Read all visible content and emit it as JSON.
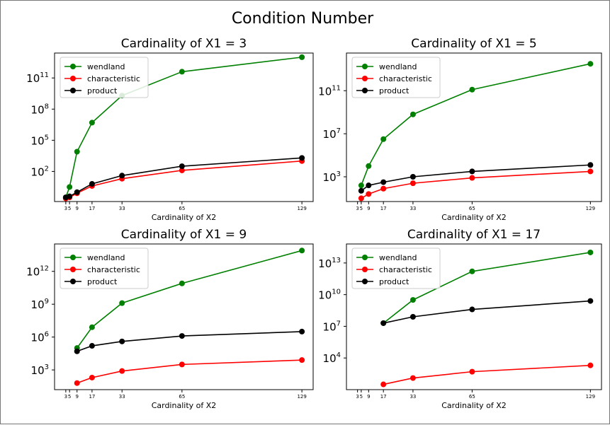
{
  "figure": {
    "title": "Condition Number"
  },
  "colors": {
    "wendland": "#008000",
    "characteristic": "#ff0000",
    "product": "#000000"
  },
  "legend": [
    "wendland",
    "characteristic",
    "product"
  ],
  "chart_data": [
    {
      "type": "line",
      "title": "Cardinality of X1 = 3",
      "xlabel": "Cardinality of X2",
      "ylabel": "",
      "y_scale": "log",
      "xlim": [
        -3,
        135
      ],
      "ylim_log10": [
        -0.9,
        13.4
      ],
      "x_ticks": [
        3,
        5,
        9,
        17,
        33,
        65,
        129
      ],
      "y_ticks": [
        {
          "exp": 2,
          "label": "10",
          "sup": "2"
        },
        {
          "exp": 5,
          "label": "10",
          "sup": "5"
        },
        {
          "exp": 8,
          "label": "10",
          "sup": "8"
        },
        {
          "exp": 11,
          "label": "10",
          "sup": "11"
        }
      ],
      "legend_position": "upper-left",
      "series": [
        {
          "name": "wendland",
          "x": [
            3,
            5,
            9,
            17,
            33,
            65,
            129
          ],
          "y_log10": [
            -0.5,
            0.5,
            3.9,
            6.7,
            9.3,
            11.6,
            13.0
          ]
        },
        {
          "name": "characteristic",
          "x": [
            3,
            5,
            9,
            17,
            33,
            65,
            129
          ],
          "y_log10": [
            -0.6,
            -0.5,
            -0.1,
            0.6,
            1.3,
            2.1,
            3.0
          ]
        },
        {
          "name": "product",
          "x": [
            3,
            5,
            9,
            17,
            33,
            65,
            129
          ],
          "y_log10": [
            -0.5,
            -0.4,
            0.0,
            0.8,
            1.6,
            2.5,
            3.3
          ]
        }
      ]
    },
    {
      "type": "line",
      "title": "Cardinality of X1 = 5",
      "xlabel": "Cardinality of X2",
      "ylabel": "",
      "y_scale": "log",
      "xlim": [
        -3,
        135
      ],
      "ylim_log10": [
        0.7,
        14.5
      ],
      "x_ticks": [
        3,
        5,
        9,
        17,
        33,
        65,
        129
      ],
      "y_ticks": [
        {
          "exp": 3,
          "label": "10",
          "sup": "3"
        },
        {
          "exp": 7,
          "label": "10",
          "sup": "7"
        },
        {
          "exp": 11,
          "label": "10",
          "sup": "11"
        }
      ],
      "legend_position": "upper-left",
      "series": [
        {
          "name": "wendland",
          "x": [
            5,
            9,
            17,
            33,
            65,
            129
          ],
          "y_log10": [
            2.2,
            4.0,
            6.5,
            8.8,
            11.1,
            13.5
          ]
        },
        {
          "name": "characteristic",
          "x": [
            5,
            9,
            17,
            33,
            65,
            129
          ],
          "y_log10": [
            1.0,
            1.4,
            1.9,
            2.4,
            2.9,
            3.5
          ]
        },
        {
          "name": "product",
          "x": [
            5,
            9,
            17,
            33,
            65,
            129
          ],
          "y_log10": [
            1.7,
            2.2,
            2.5,
            3.0,
            3.5,
            4.1
          ]
        }
      ]
    },
    {
      "type": "line",
      "title": "Cardinality of X1 = 9",
      "xlabel": "Cardinality of X2",
      "ylabel": "",
      "y_scale": "log",
      "xlim": [
        -3,
        135
      ],
      "ylim_log10": [
        1.2,
        14.5
      ],
      "x_ticks": [
        3,
        5,
        9,
        17,
        33,
        65,
        129
      ],
      "y_ticks": [
        {
          "exp": 3,
          "label": "10",
          "sup": "3"
        },
        {
          "exp": 6,
          "label": "10",
          "sup": "6"
        },
        {
          "exp": 9,
          "label": "10",
          "sup": "9"
        },
        {
          "exp": 12,
          "label": "10",
          "sup": "12"
        }
      ],
      "legend_position": "upper-left",
      "series": [
        {
          "name": "wendland",
          "x": [
            9,
            17,
            33,
            65,
            129
          ],
          "y_log10": [
            5.0,
            6.9,
            9.1,
            10.9,
            13.9
          ]
        },
        {
          "name": "characteristic",
          "x": [
            9,
            17,
            33,
            65,
            129
          ],
          "y_log10": [
            1.8,
            2.3,
            2.9,
            3.5,
            3.9
          ]
        },
        {
          "name": "product",
          "x": [
            9,
            17,
            33,
            65,
            129
          ],
          "y_log10": [
            4.7,
            5.2,
            5.6,
            6.1,
            6.5
          ]
        }
      ]
    },
    {
      "type": "line",
      "title": "Cardinality of X1 = 17",
      "xlabel": "Cardinality of X2",
      "ylabel": "",
      "y_scale": "log",
      "xlim": [
        -3,
        135
      ],
      "ylim_log10": [
        1.0,
        14.8
      ],
      "x_ticks": [
        3,
        5,
        9,
        17,
        33,
        65,
        129
      ],
      "y_ticks": [
        {
          "exp": 4,
          "label": "10",
          "sup": "4"
        },
        {
          "exp": 7,
          "label": "10",
          "sup": "7"
        },
        {
          "exp": 10,
          "label": "10",
          "sup": "10"
        },
        {
          "exp": 13,
          "label": "10",
          "sup": "13"
        }
      ],
      "legend_position": "upper-left",
      "series": [
        {
          "name": "wendland",
          "x": [
            17,
            33,
            65,
            129
          ],
          "y_log10": [
            7.3,
            9.5,
            12.2,
            14.0
          ]
        },
        {
          "name": "characteristic",
          "x": [
            17,
            33,
            65,
            129
          ],
          "y_log10": [
            1.5,
            2.1,
            2.7,
            3.3
          ]
        },
        {
          "name": "product",
          "x": [
            17,
            33,
            65,
            129
          ],
          "y_log10": [
            7.3,
            7.9,
            8.6,
            9.4
          ]
        }
      ]
    }
  ]
}
